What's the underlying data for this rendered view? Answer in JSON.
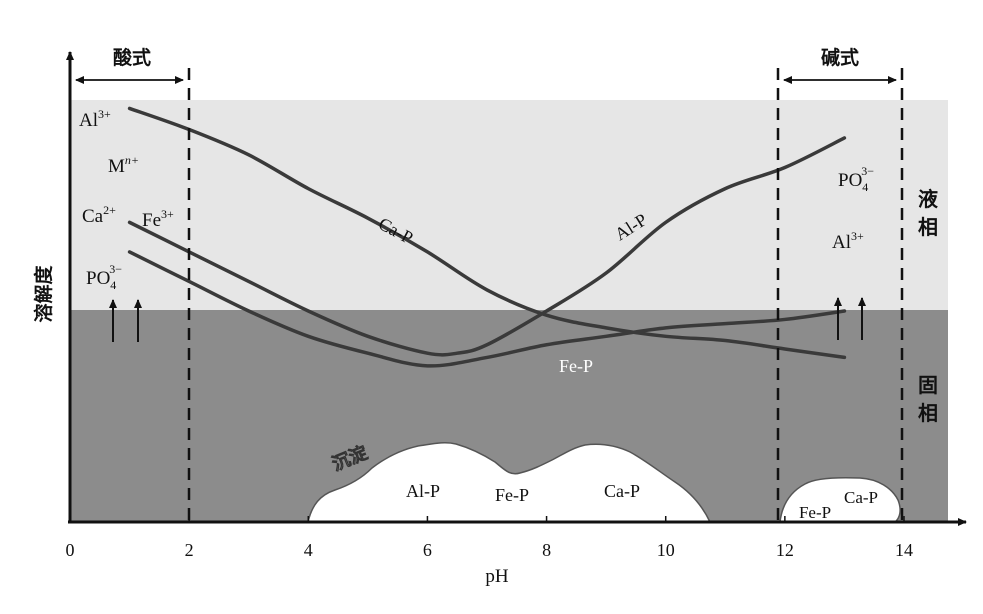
{
  "chart_data": {
    "type": "line",
    "xlabel": "pH",
    "ylabel": "溶解度",
    "xlim": [
      0,
      15
    ],
    "x_ticks": [
      "0",
      "2",
      "4",
      "6",
      "8",
      "10",
      "12",
      "14"
    ],
    "x_tick_values": [
      0,
      2,
      4,
      6,
      8,
      10,
      12,
      14
    ],
    "grid": false,
    "regions": {
      "acidic": "酸式",
      "alkaline": "碱式",
      "liquid_phase": [
        "液",
        "相"
      ],
      "solid_phase": [
        "固",
        "相"
      ]
    },
    "boundaries_ph": [
      2,
      11.85,
      14
    ],
    "phase_boundary_solubility": 0.5,
    "series": [
      {
        "name": "Ca-P",
        "x": [
          1.0,
          2.0,
          3.0,
          4.0,
          5.0,
          6.0,
          7.0,
          8.0,
          9.0,
          10.0,
          11.0,
          12.0,
          13.0
        ],
        "y": [
          0.98,
          0.93,
          0.87,
          0.79,
          0.72,
          0.64,
          0.55,
          0.49,
          0.46,
          0.44,
          0.43,
          0.41,
          0.39
        ]
      },
      {
        "name": "Al-P",
        "x": [
          1.0,
          2.0,
          3.0,
          4.0,
          5.0,
          6.0,
          6.5,
          7.0,
          8.0,
          9.0,
          10.0,
          11.0,
          12.0,
          13.0
        ],
        "y": [
          0.71,
          0.64,
          0.57,
          0.5,
          0.44,
          0.4,
          0.4,
          0.42,
          0.5,
          0.59,
          0.71,
          0.79,
          0.84,
          0.91
        ]
      },
      {
        "name": "Fe-P",
        "x": [
          1.0,
          2.0,
          3.0,
          4.0,
          5.0,
          6.0,
          7.0,
          8.0,
          9.0,
          10.0,
          11.0,
          12.0,
          13.0
        ],
        "y": [
          0.64,
          0.57,
          0.5,
          0.44,
          0.4,
          0.37,
          0.39,
          0.42,
          0.44,
          0.46,
          0.47,
          0.48,
          0.5
        ]
      }
    ],
    "precipitates": {
      "label": "沉淀",
      "main": [
        "Al-P",
        "Fe-P",
        "Ca-P"
      ],
      "alkaline": [
        "Fe-P",
        "Ca-P"
      ]
    },
    "ion_labels": {
      "al": {
        "base": "Al",
        "sup": "3+"
      },
      "m": {
        "base": "M",
        "sup": "n+"
      },
      "ca": {
        "base": "Ca",
        "sup": "2+"
      },
      "fe": {
        "base": "Fe",
        "sup": "3+"
      },
      "po4_left": {
        "base": "PO",
        "sub": "4",
        "sup": "3−"
      },
      "po4_right": {
        "base": "PO",
        "sub": "4",
        "sup": "3−"
      },
      "al_right": {
        "base": "Al",
        "sup": "3+"
      }
    },
    "colors": {
      "liquid": "#e6e6e6",
      "solid": "#8c8c8c",
      "curve": "#3a3a3a",
      "precipitate": "#ffffff"
    }
  }
}
